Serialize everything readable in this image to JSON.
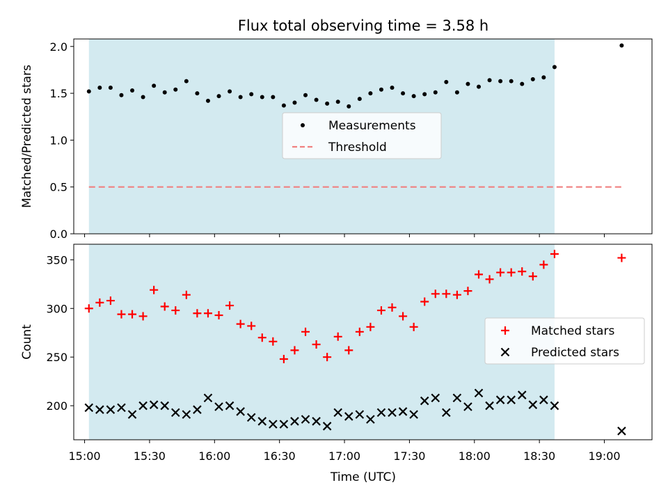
{
  "chart_data": {
    "title": "Flux total observing time = 3.58 h",
    "xlabel": "Time (UTC)",
    "x_ticks": [
      "15:00",
      "15:30",
      "16:00",
      "16:30",
      "17:00",
      "17:30",
      "18:00",
      "18:30",
      "19:00"
    ],
    "x_range": [
      "14:55",
      "19:22"
    ],
    "observing_window": [
      "15:02",
      "18:37"
    ],
    "window_color": "#d3eaf0",
    "panels": [
      {
        "type": "scatter",
        "ylabel": "Matched/Predicted stars",
        "ylim": [
          0,
          2.08
        ],
        "yticks": [
          "0.0",
          "0.5",
          "1.0",
          "1.5",
          "2.0"
        ],
        "legend_position": "center",
        "series": [
          {
            "name": "Measurements",
            "marker": "dot",
            "color": "#000000",
            "x": [
              "15:02",
              "15:07",
              "15:12",
              "15:17",
              "15:22",
              "15:27",
              "15:32",
              "15:37",
              "15:42",
              "15:47",
              "15:52",
              "15:57",
              "16:02",
              "16:07",
              "16:12",
              "16:17",
              "16:22",
              "16:27",
              "16:32",
              "16:37",
              "16:42",
              "16:47",
              "16:52",
              "16:57",
              "17:02",
              "17:07",
              "17:12",
              "17:17",
              "17:22",
              "17:27",
              "17:32",
              "17:37",
              "17:42",
              "17:47",
              "17:52",
              "17:57",
              "18:02",
              "18:07",
              "18:12",
              "18:17",
              "18:22",
              "18:27",
              "18:32",
              "18:37",
              "19:08"
            ],
            "y": [
              1.52,
              1.56,
              1.56,
              1.48,
              1.53,
              1.46,
              1.58,
              1.51,
              1.54,
              1.63,
              1.5,
              1.42,
              1.47,
              1.52,
              1.46,
              1.49,
              1.46,
              1.46,
              1.37,
              1.4,
              1.48,
              1.43,
              1.39,
              1.41,
              1.36,
              1.44,
              1.5,
              1.54,
              1.56,
              1.5,
              1.47,
              1.49,
              1.51,
              1.62,
              1.51,
              1.6,
              1.57,
              1.64,
              1.63,
              1.63,
              1.6,
              1.65,
              1.67,
              1.78,
              2.01
            ]
          },
          {
            "name": "Threshold",
            "marker": "dashed-line",
            "color": "#f08080",
            "x": [
              "15:02",
              "19:08"
            ],
            "y": [
              0.5,
              0.5
            ]
          }
        ]
      },
      {
        "type": "scatter",
        "ylabel": "Count",
        "ylim": [
          165,
          366
        ],
        "yticks": [
          "200",
          "250",
          "300",
          "350"
        ],
        "legend_position": "right",
        "series": [
          {
            "name": "Matched stars",
            "marker": "plus",
            "color": "#ff0000",
            "x": [
              "15:02",
              "15:07",
              "15:12",
              "15:17",
              "15:22",
              "15:27",
              "15:32",
              "15:37",
              "15:42",
              "15:47",
              "15:52",
              "15:57",
              "16:02",
              "16:07",
              "16:12",
              "16:17",
              "16:22",
              "16:27",
              "16:32",
              "16:37",
              "16:42",
              "16:47",
              "16:52",
              "16:57",
              "17:02",
              "17:07",
              "17:12",
              "17:17",
              "17:22",
              "17:27",
              "17:32",
              "17:37",
              "17:42",
              "17:47",
              "17:52",
              "17:57",
              "18:02",
              "18:07",
              "18:12",
              "18:17",
              "18:22",
              "18:27",
              "18:32",
              "18:37",
              "19:08"
            ],
            "y": [
              300,
              306,
              308,
              294,
              294,
              292,
              319,
              302,
              298,
              314,
              295,
              295,
              293,
              303,
              284,
              282,
              270,
              266,
              248,
              257,
              276,
              263,
              250,
              271,
              257,
              276,
              281,
              298,
              301,
              292,
              281,
              307,
              315,
              315,
              314,
              318,
              335,
              330,
              337,
              337,
              338,
              333,
              345,
              356,
              352
            ]
          },
          {
            "name": "Predicted stars",
            "marker": "x",
            "color": "#000000",
            "x": [
              "15:02",
              "15:07",
              "15:12",
              "15:17",
              "15:22",
              "15:27",
              "15:32",
              "15:37",
              "15:42",
              "15:47",
              "15:52",
              "15:57",
              "16:02",
              "16:07",
              "16:12",
              "16:17",
              "16:22",
              "16:27",
              "16:32",
              "16:37",
              "16:42",
              "16:47",
              "16:52",
              "16:57",
              "17:02",
              "17:07",
              "17:12",
              "17:17",
              "17:22",
              "17:27",
              "17:32",
              "17:37",
              "17:42",
              "17:47",
              "17:52",
              "17:57",
              "18:02",
              "18:07",
              "18:12",
              "18:17",
              "18:22",
              "18:27",
              "18:32",
              "18:37",
              "19:08"
            ],
            "y": [
              198,
              196,
              196,
              198,
              191,
              200,
              201,
              200,
              193,
              191,
              196,
              208,
              199,
              200,
              194,
              188,
              184,
              181,
              181,
              184,
              186,
              184,
              179,
              193,
              189,
              191,
              186,
              193,
              193,
              194,
              191,
              205,
              208,
              193,
              208,
              199,
              213,
              200,
              206,
              206,
              211,
              201,
              206,
              200,
              174
            ]
          }
        ]
      }
    ]
  }
}
